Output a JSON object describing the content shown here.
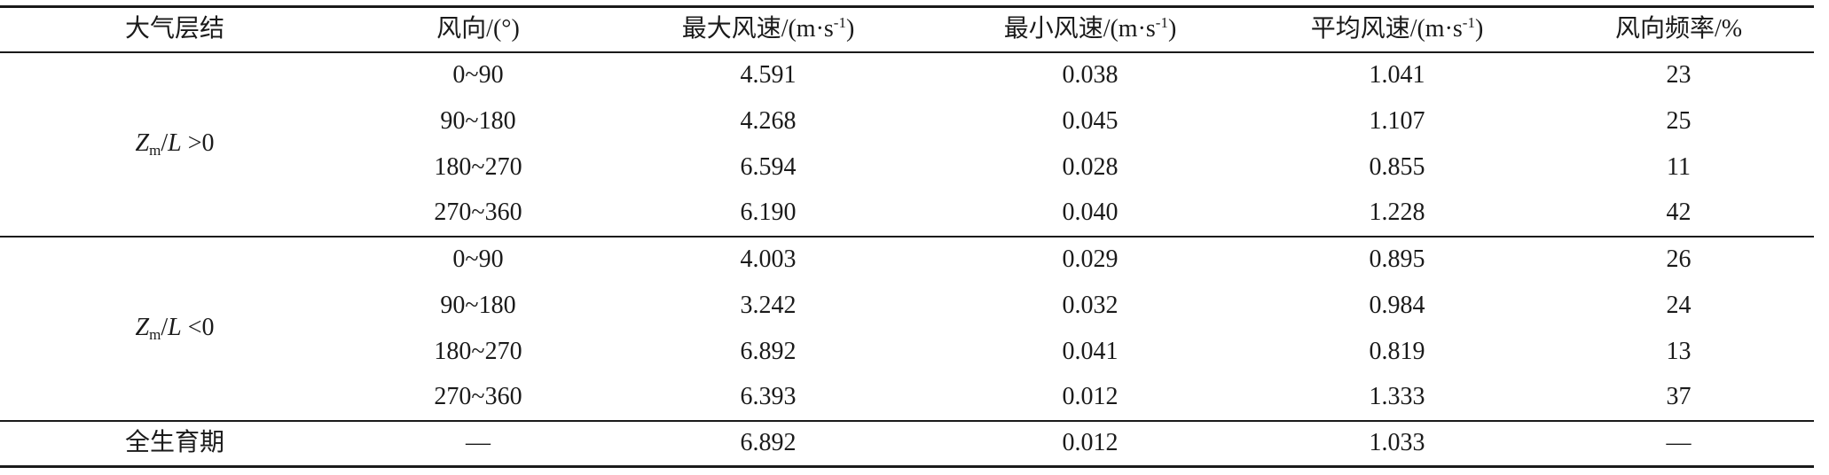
{
  "table": {
    "headers": {
      "stratification": "大气层结",
      "wind_direction": "风向/(°)",
      "max_speed": "最大风速/(m·s",
      "min_speed": "最小风速/(m·s",
      "mean_speed": "平均风速/(m·s",
      "unit_exponent": "-1",
      "unit_close": ")",
      "frequency": "风向频率/%"
    },
    "groups": [
      {
        "label": {
          "var": "Z",
          "sub": "m",
          "slash": "/",
          "var2": "L",
          "rel": " >0"
        },
        "rows": [
          {
            "direction": "0~90",
            "max": "4.591",
            "min": "0.038",
            "mean": "1.041",
            "freq": "23"
          },
          {
            "direction": "90~180",
            "max": "4.268",
            "min": "0.045",
            "mean": "1.107",
            "freq": "25"
          },
          {
            "direction": "180~270",
            "max": "6.594",
            "min": "0.028",
            "mean": "0.855",
            "freq": "11"
          },
          {
            "direction": "270~360",
            "max": "6.190",
            "min": "0.040",
            "mean": "1.228",
            "freq": "42"
          }
        ]
      },
      {
        "label": {
          "var": "Z",
          "sub": "m",
          "slash": "/",
          "var2": "L",
          "rel": " <0"
        },
        "rows": [
          {
            "direction": "0~90",
            "max": "4.003",
            "min": "0.029",
            "mean": "0.895",
            "freq": "26"
          },
          {
            "direction": "90~180",
            "max": "3.242",
            "min": "0.032",
            "mean": "0.984",
            "freq": "24"
          },
          {
            "direction": "180~270",
            "max": "6.892",
            "min": "0.041",
            "mean": "0.819",
            "freq": "13"
          },
          {
            "direction": "270~360",
            "max": "6.393",
            "min": "0.012",
            "mean": "1.333",
            "freq": "37"
          }
        ]
      }
    ],
    "total": {
      "label": "全生育期",
      "direction": "—",
      "max": "6.892",
      "min": "0.012",
      "mean": "1.033",
      "freq": "—"
    }
  }
}
